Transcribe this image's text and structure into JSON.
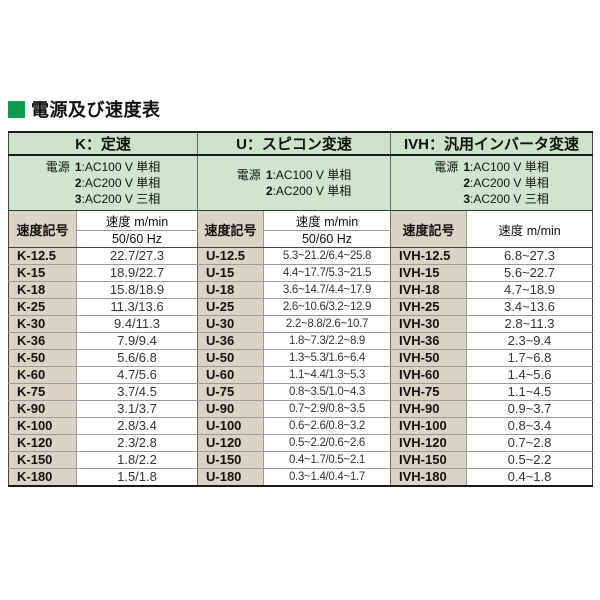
{
  "title": {
    "text": "電源及び速度表"
  },
  "colors": {
    "title_green": "#0d9b4d",
    "section_header_green": "#cce2cb",
    "power_section_green": "#cfe5cf",
    "code_column_beige": "#d9d4c5",
    "border_dark": "#1a1a1a"
  },
  "table": {
    "sections": [
      {
        "id": "K",
        "header": "K：定速",
        "power_prefix": "電源",
        "power_lines": [
          {
            "num": "1",
            "rest": ":AC100 V 単相"
          },
          {
            "num": "2",
            "rest": ":AC200 V 単相"
          },
          {
            "num": "3",
            "rest": ":AC200 V 三相"
          }
        ],
        "code_header": "速度記号",
        "speed_header": "速度 m/min",
        "freq_header": "50/60 Hz",
        "rows": [
          {
            "code": "K-12.5",
            "value": "22.7/27.3"
          },
          {
            "code": "K-15",
            "value": "18.9/22.7"
          },
          {
            "code": "K-18",
            "value": "15.8/18.9"
          },
          {
            "code": "K-25",
            "value": "11.3/13.6"
          },
          {
            "code": "K-30",
            "value": "9.4/11.3"
          },
          {
            "code": "K-36",
            "value": "7.9/9.4"
          },
          {
            "code": "K-50",
            "value": "5.6/6.8"
          },
          {
            "code": "K-60",
            "value": "4.7/5.6"
          },
          {
            "code": "K-75",
            "value": "3.7/4.5"
          },
          {
            "code": "K-90",
            "value": "3.1/3.7"
          },
          {
            "code": "K-100",
            "value": "2.8/3.4"
          },
          {
            "code": "K-120",
            "value": "2.3/2.8"
          },
          {
            "code": "K-150",
            "value": "1.8/2.2"
          },
          {
            "code": "K-180",
            "value": "1.5/1.8"
          }
        ]
      },
      {
        "id": "U",
        "header": "U：スピコン変速",
        "power_prefix": "電源",
        "power_lines": [
          {
            "num": "1",
            "rest": ":AC100 V 単相"
          },
          {
            "num": "2",
            "rest": ":AC200 V 単相"
          }
        ],
        "code_header": "速度記号",
        "speed_header": "速度 m/min",
        "freq_header": "50/60 Hz",
        "rows": [
          {
            "code": "U-12.5",
            "value": "5.3~21.2/6.4~25.8"
          },
          {
            "code": "U-15",
            "value": "4.4~17.7/5.3~21.5"
          },
          {
            "code": "U-18",
            "value": "3.6~14.7/4.4~17.9"
          },
          {
            "code": "U-25",
            "value": "2.6~10.6/3.2~12.9"
          },
          {
            "code": "U-30",
            "value": "2.2~8.8/2.6~10.7"
          },
          {
            "code": "U-36",
            "value": "1.8~7.3/2.2~8.9"
          },
          {
            "code": "U-50",
            "value": "1.3~5.3/1.6~6.4"
          },
          {
            "code": "U-60",
            "value": "1.1~4.4/1.3~5.3"
          },
          {
            "code": "U-75",
            "value": "0.8~3.5/1.0~4.3"
          },
          {
            "code": "U-90",
            "value": "0.7~2.9/0.8~3.5"
          },
          {
            "code": "U-100",
            "value": "0.6~2.6/0.8~3.2"
          },
          {
            "code": "U-120",
            "value": "0.5~2.2/0.6~2.6"
          },
          {
            "code": "U-150",
            "value": "0.4~1.7/0.5~2.1"
          },
          {
            "code": "U-180",
            "value": "0.3~1.4/0.4~1.7"
          }
        ]
      },
      {
        "id": "IVH",
        "header": "IVH：汎用インバータ変速",
        "power_prefix": "電源",
        "power_lines": [
          {
            "num": "1",
            "rest": ":AC100 V 単相"
          },
          {
            "num": "2",
            "rest": ":AC200 V 単相"
          },
          {
            "num": "3",
            "rest": ":AC200 V 三相"
          }
        ],
        "code_header": "速度記号",
        "speed_header": "速度 m/min",
        "freq_header": null,
        "rows": [
          {
            "code": "IVH-12.5",
            "value": "6.8~27.3"
          },
          {
            "code": "IVH-15",
            "value": "5.6~22.7"
          },
          {
            "code": "IVH-18",
            "value": "4.7~18.9"
          },
          {
            "code": "IVH-25",
            "value": "3.4~13.6"
          },
          {
            "code": "IVH-30",
            "value": "2.8~11.3"
          },
          {
            "code": "IVH-36",
            "value": "2.3~9.4"
          },
          {
            "code": "IVH-50",
            "value": "1.7~6.8"
          },
          {
            "code": "IVH-60",
            "value": "1.4~5.6"
          },
          {
            "code": "IVH-75",
            "value": "1.1~4.5"
          },
          {
            "code": "IVH-90",
            "value": "0.9~3.7"
          },
          {
            "code": "IVH-100",
            "value": "0.8~3.4"
          },
          {
            "code": "IVH-120",
            "value": "0.7~2.8"
          },
          {
            "code": "IVH-150",
            "value": "0.5~2.2"
          },
          {
            "code": "IVH-180",
            "value": "0.4~1.8"
          }
        ]
      }
    ]
  }
}
